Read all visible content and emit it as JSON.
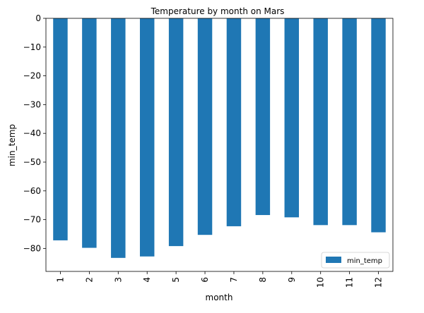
{
  "chart_data": {
    "type": "bar",
    "title": "Temperature by month on Mars",
    "xlabel": "month",
    "ylabel": "min_temp",
    "categories": [
      "1",
      "2",
      "3",
      "4",
      "5",
      "6",
      "7",
      "8",
      "9",
      "10",
      "11",
      "12"
    ],
    "series": [
      {
        "name": "min_temp",
        "color": "#1f77b4",
        "values": [
          -77.2,
          -79.8,
          -83.3,
          -82.8,
          -79.2,
          -75.3,
          -72.3,
          -68.4,
          -69.2,
          -71.9,
          -71.9,
          -74.4
        ]
      }
    ],
    "ylim": [
      -88,
      0
    ],
    "yticks": [
      0,
      -10,
      -20,
      -30,
      -40,
      -50,
      -60,
      -70,
      -80
    ],
    "ytick_labels": [
      "0",
      "−10",
      "−20",
      "−30",
      "−40",
      "−50",
      "−60",
      "−70",
      "−80"
    ],
    "grid": false,
    "legend_position": "lower-right"
  }
}
